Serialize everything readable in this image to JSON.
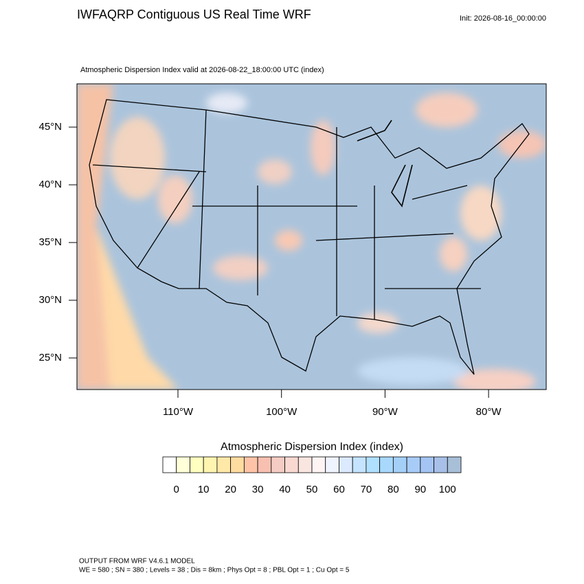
{
  "header": {
    "title": "IWFAQRP Contiguous US Real Time WRF",
    "init": "Init: 2026-08-16_00:00:00"
  },
  "map": {
    "subtitle": "Atmospheric Dispersion Index valid at 2026-08-22_18:00:00 UTC   (index)",
    "lat_labels": [
      "45°N",
      "40°N",
      "35°N",
      "30°N",
      "25°N"
    ],
    "lon_labels": [
      "110°W",
      "100°W",
      "90°W",
      "80°W"
    ]
  },
  "colorbar": {
    "title": "Atmospheric Dispersion Index  (index)",
    "ticks": [
      0,
      10,
      20,
      30,
      40,
      50,
      60,
      70,
      80,
      90,
      100
    ],
    "colors": [
      "#ffffff",
      "#ffffd8",
      "#ffffc0",
      "#fff5b0",
      "#ffe8a8",
      "#ffdca0",
      "#ffc4a8",
      "#f8c0b0",
      "#f5ccc4",
      "#f8d8d0",
      "#fae6e0",
      "#fff4f4",
      "#f0f4ff",
      "#dceaff",
      "#c4e4ff",
      "#b0e0ff",
      "#a8d8fc",
      "#a4d0f8",
      "#a8ccf8",
      "#a4c4f4",
      "#a8c0e8",
      "#a8bfd8"
    ]
  },
  "footer": {
    "line1": "OUTPUT FROM WRF V4.6.1 MODEL",
    "line2": "WE = 580 ; SN = 380 ; Levels = 38 ; Dis = 8km ; Phys Opt = 8 ; PBL Opt = 1 ; Cu Opt = 5"
  }
}
